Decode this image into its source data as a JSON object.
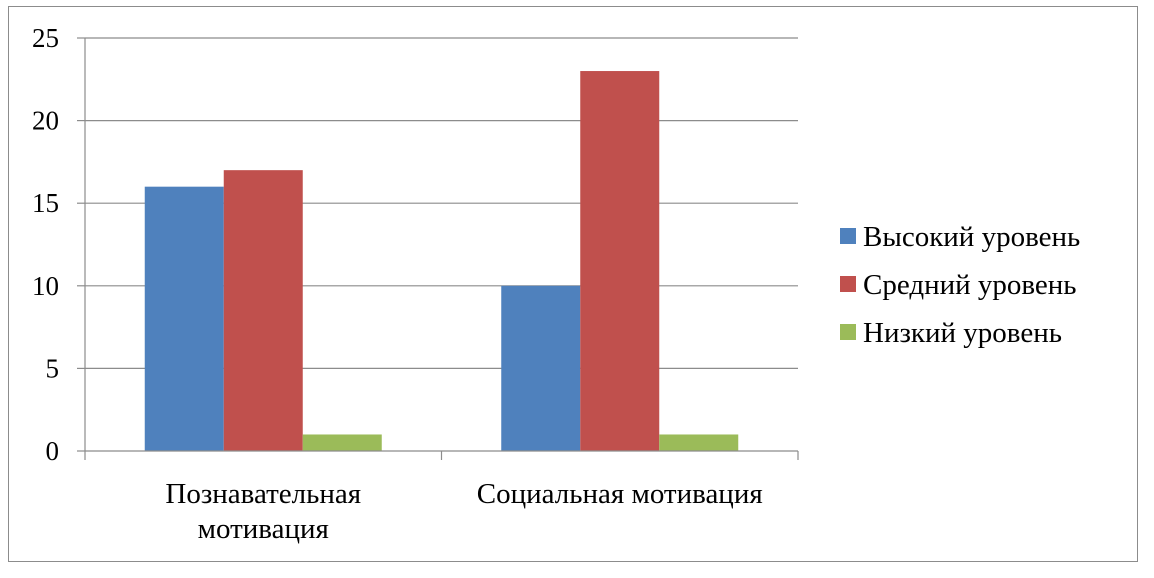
{
  "chart_data": {
    "type": "bar",
    "categories": [
      [
        "Познавательная",
        "мотивация"
      ],
      [
        "Социальная мотивация"
      ]
    ],
    "series": [
      {
        "name": "Высокий уровень",
        "color": "#4F81BD",
        "values": [
          16,
          10
        ]
      },
      {
        "name": "Средний уровень",
        "color": "#C0504D",
        "values": [
          17,
          23
        ]
      },
      {
        "name": "Низкий уровень",
        "color": "#9BBB59",
        "values": [
          1,
          1
        ]
      }
    ],
    "ylim": [
      0,
      25
    ],
    "yticks": [
      "0",
      "5",
      "10",
      "15",
      "20",
      "25"
    ],
    "grid": true,
    "legend_position": "right"
  }
}
